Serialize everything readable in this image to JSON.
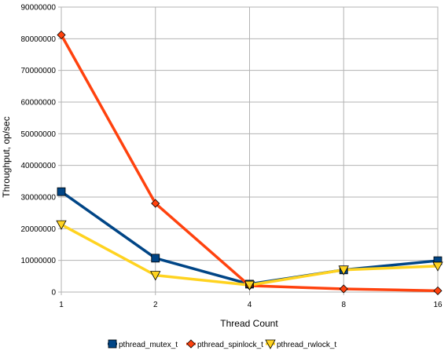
{
  "chart_data": {
    "type": "line",
    "xlabel": "Thread Count",
    "ylabel": "Throughput, op/sec",
    "categories": [
      "1",
      "2",
      "4",
      "8",
      "16"
    ],
    "ylim": [
      0,
      90000000
    ],
    "yticks": [
      0,
      10000000,
      20000000,
      30000000,
      40000000,
      50000000,
      60000000,
      70000000,
      80000000,
      90000000
    ],
    "grid": true,
    "legend_position": "bottom",
    "series": [
      {
        "name": "pthread_mutex_t",
        "values": [
          31700000,
          10700000,
          2500000,
          7000000,
          9900000
        ],
        "color": "#004586",
        "marker": "square"
      },
      {
        "name": "pthread_spinlock_t",
        "values": [
          81200000,
          28000000,
          2000000,
          1000000,
          400000
        ],
        "color": "#ff420e",
        "marker": "diamond"
      },
      {
        "name": "pthread_rwlock_t",
        "values": [
          21300000,
          5300000,
          2200000,
          7000000,
          8200000
        ],
        "color": "#ffd320",
        "marker": "triangle-down"
      }
    ]
  }
}
